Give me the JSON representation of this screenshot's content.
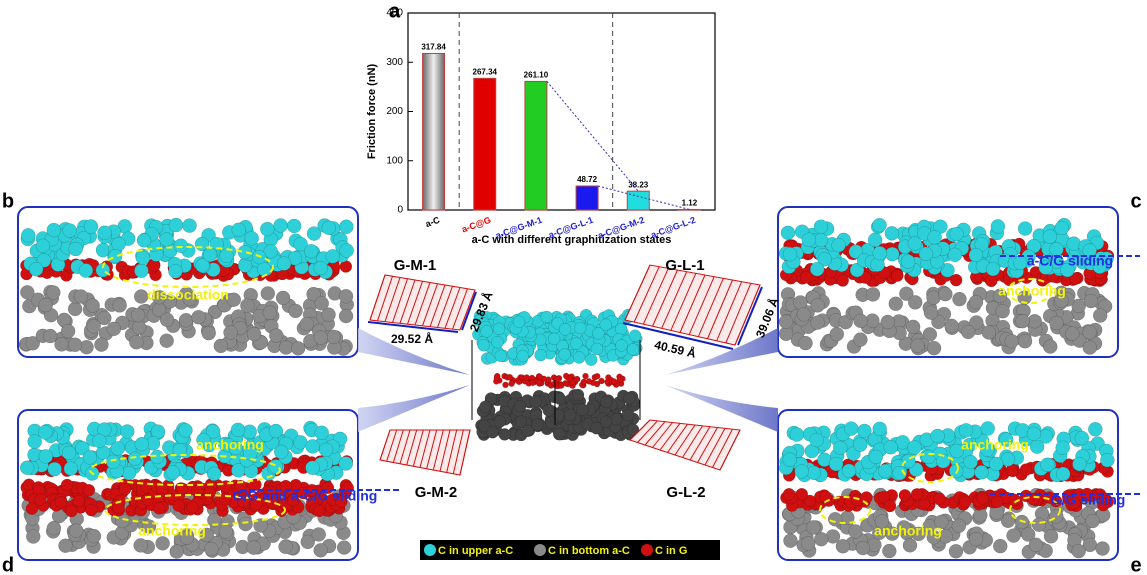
{
  "chart_data": {
    "type": "bar",
    "panel_label": "a",
    "xlabel": "a-C with different graphitization states",
    "ylabel": "Friction force (nN)",
    "categories": [
      "a-C",
      "a-C@G",
      "a-C@G-M-1",
      "a-C@G-L-1",
      "a-C@G-M-2",
      "a-C@G-L-2"
    ],
    "category_colors": [
      "#000000",
      "#e00000",
      "#2020d0",
      "#2020d0",
      "#2020d0",
      "#2020d0"
    ],
    "values": [
      317.84,
      267.34,
      261.1,
      48.72,
      38.23,
      1.12
    ],
    "value_labels": [
      "317.84",
      "267.34",
      "261.10",
      "48.72",
      "38.23",
      "1.12"
    ],
    "colors": [
      "#9a9a9a",
      "#e00000",
      "#22cc22",
      "#1a1aee",
      "#22dddd",
      "#888888"
    ],
    "ylim": [
      0,
      400
    ],
    "yticks": [
      0,
      100,
      200,
      300,
      400
    ]
  },
  "figure": {
    "panel_labels": [
      "b",
      "c",
      "d",
      "e"
    ],
    "structures": [
      {
        "name": "G-M-1",
        "dims": [
          "29.52 Å",
          "29.83 Å"
        ]
      },
      {
        "name": "G-L-1",
        "dims": [
          "40.59 Å",
          "39.06 Å"
        ]
      },
      {
        "name": "G-M-2"
      },
      {
        "name": "G-L-2"
      }
    ],
    "annotations": {
      "b": [
        "dissociation"
      ],
      "c": [
        "a-C/G sliding",
        "anchoring"
      ],
      "d": [
        "anchoring",
        "G/G and a-C/G sliding",
        "anchoring"
      ],
      "e": [
        "anchoring",
        "G/G sliding",
        "anchoring"
      ]
    },
    "legend": [
      "C in upper a-C",
      "C in bottom a-C",
      "C in G"
    ]
  }
}
